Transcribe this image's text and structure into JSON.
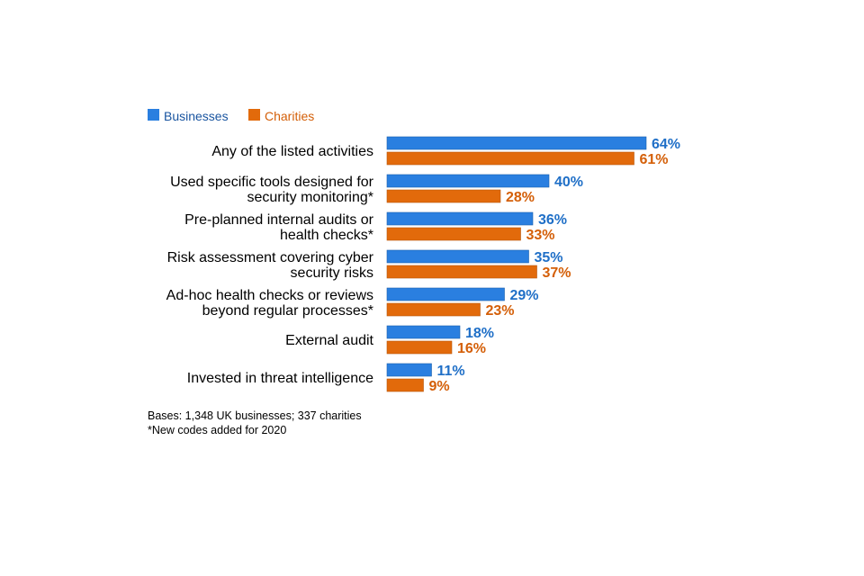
{
  "colors": {
    "businesses": "#2a7fe0",
    "businesses_text": "#1f6fc7",
    "charities": "#e26a0b",
    "charities_text": "#d45f08"
  },
  "legend": {
    "businesses": "Businesses",
    "charities": "Charities"
  },
  "notes": {
    "bases": "Bases: 1,348 UK businesses; 337 charities",
    "new_codes": "*New codes added for 2020"
  },
  "chart_data": {
    "type": "bar",
    "orientation": "horizontal",
    "value_suffix": "%",
    "legend_position": "top-left",
    "grid": false,
    "xlim": [
      0,
      100
    ],
    "categories": [
      [
        "Any of the listed activities"
      ],
      [
        "Used specific tools designed for",
        "security monitoring*"
      ],
      [
        "Pre-planned internal audits or",
        "health checks*"
      ],
      [
        "Risk assessment covering cyber",
        "security risks"
      ],
      [
        "Ad-hoc health checks or reviews",
        "beyond regular processes*"
      ],
      [
        "External audit"
      ],
      [
        "Invested in threat intelligence"
      ]
    ],
    "series": [
      {
        "name": "Businesses",
        "values": [
          64,
          40,
          36,
          35,
          29,
          18,
          11
        ]
      },
      {
        "name": "Charities",
        "values": [
          61,
          28,
          33,
          37,
          23,
          16,
          9
        ]
      }
    ]
  }
}
